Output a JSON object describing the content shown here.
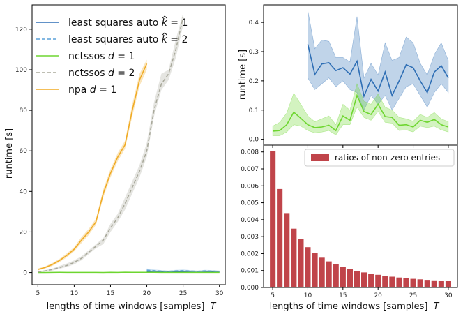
{
  "chart_data": [
    {
      "type": "line",
      "id": "left",
      "xlabel": "lengths of time windows [samples]",
      "xlabel_var": "T",
      "ylabel": "runtime [s]",
      "xlim": [
        4.2,
        30.8
      ],
      "ylim": [
        -6,
        132
      ],
      "xticks": [
        5,
        10,
        15,
        20,
        25,
        30
      ],
      "yticks": [
        0,
        20,
        40,
        60,
        80,
        100,
        120
      ],
      "legend": {
        "position": "top-left",
        "entries": [
          {
            "label": "least squares auto",
            "suffix": " = 1",
            "hat": "k"
          },
          {
            "label": "least squares auto",
            "suffix": " = 2",
            "hat": "k"
          },
          {
            "label": "nctssos",
            "suffix": " = 1",
            "var": "d"
          },
          {
            "label": "nctssos",
            "suffix": " = 2",
            "var": "d"
          },
          {
            "label": "npa",
            "suffix": " = 1",
            "var": "d"
          }
        ]
      },
      "series": [
        {
          "name": "least squares auto k=1",
          "color": "#2f6fb5",
          "dash": "solid",
          "x": [
            20,
            21,
            22,
            23,
            24,
            25,
            26,
            27,
            28,
            29,
            30
          ],
          "y": [
            0.33,
            0.22,
            0.28,
            0.24,
            0.27,
            0.3,
            0.22,
            0.17,
            0.23,
            0.25,
            0.21
          ],
          "lo": [
            0.2,
            0.12,
            0.15,
            0.13,
            0.15,
            0.17,
            0.12,
            0.1,
            0.13,
            0.14,
            0.12
          ],
          "hi": [
            1.5,
            0.6,
            0.5,
            0.45,
            0.5,
            0.6,
            0.4,
            0.35,
            0.4,
            0.5,
            0.35
          ]
        },
        {
          "name": "least squares auto k=2",
          "color": "#5aa0d8",
          "dash": "dashed",
          "x": [
            20,
            21,
            22,
            23,
            24,
            25,
            26,
            27,
            28,
            29,
            30
          ],
          "y": [
            1.2,
            0.9,
            0.7,
            0.6,
            0.8,
            0.9,
            0.7,
            0.6,
            0.8,
            0.7,
            0.6
          ],
          "lo": [
            0.7,
            0.5,
            0.4,
            0.3,
            0.4,
            0.5,
            0.4,
            0.3,
            0.4,
            0.4,
            0.3
          ],
          "hi": [
            2.0,
            1.5,
            1.2,
            1.0,
            1.3,
            1.5,
            1.2,
            1.0,
            1.3,
            1.2,
            1.0
          ]
        },
        {
          "name": "nctssos d=1",
          "color": "#6ed630",
          "dash": "solid",
          "x": [
            5,
            6,
            7,
            8,
            9,
            10,
            11,
            12,
            13,
            14,
            15,
            16,
            17,
            18,
            19,
            20,
            21,
            22,
            23,
            24,
            25,
            26,
            27,
            28,
            29,
            30
          ],
          "y": [
            0.03,
            0.03,
            0.05,
            0.09,
            0.07,
            0.05,
            0.04,
            0.04,
            0.05,
            0.03,
            0.08,
            0.07,
            0.15,
            0.1,
            0.09,
            0.12,
            0.08,
            0.07,
            0.05,
            0.05,
            0.04,
            0.06,
            0.05,
            0.06,
            0.05,
            0.04
          ],
          "lo": [
            0.01,
            0.01,
            0.02,
            0.05,
            0.04,
            0.03,
            0.02,
            0.02,
            0.03,
            0.01,
            0.05,
            0.05,
            0.1,
            0.07,
            0.06,
            0.09,
            0.06,
            0.05,
            0.03,
            0.03,
            0.02,
            0.04,
            0.03,
            0.04,
            0.03,
            0.02
          ],
          "hi": [
            0.05,
            0.06,
            0.09,
            0.16,
            0.12,
            0.08,
            0.06,
            0.07,
            0.08,
            0.05,
            0.12,
            0.1,
            0.19,
            0.13,
            0.12,
            0.15,
            0.11,
            0.1,
            0.08,
            0.07,
            0.06,
            0.08,
            0.07,
            0.09,
            0.07,
            0.06
          ]
        },
        {
          "name": "nctssos d=2",
          "color": "#a8a89a",
          "dash": "dashed",
          "x": [
            5,
            6,
            7,
            8,
            9,
            10,
            11,
            12,
            13,
            14,
            15,
            16,
            17,
            18,
            19,
            20,
            21,
            22,
            23,
            24,
            25
          ],
          "y": [
            0.3,
            0.8,
            1.5,
            2.5,
            3.5,
            5,
            7,
            10,
            13,
            16,
            22,
            27,
            34,
            42,
            50,
            60,
            80,
            93,
            98,
            110,
            126
          ],
          "lo": [
            0.1,
            0.5,
            1.0,
            1.8,
            2.8,
            4,
            6,
            9,
            12,
            14,
            20,
            25,
            31,
            39,
            47,
            57,
            77,
            90,
            95,
            106,
            122
          ],
          "hi": [
            0.5,
            1.2,
            2.0,
            3.3,
            4.5,
            6,
            8,
            11,
            14,
            17,
            24,
            29,
            37,
            45,
            53,
            64,
            84,
            98,
            100,
            115,
            128
          ]
        },
        {
          "name": "npa d=1",
          "color": "#f0aa22",
          "dash": "solid",
          "x": [
            5,
            6,
            7,
            8,
            9,
            10,
            11,
            12,
            13,
            14,
            15,
            16,
            17,
            18,
            19,
            20
          ],
          "y": [
            1.5,
            2.5,
            4,
            6,
            8.5,
            11.5,
            16,
            20,
            25,
            39,
            49,
            57,
            63,
            80,
            95,
            103
          ],
          "lo": [
            1.0,
            2.0,
            3.3,
            5.2,
            7.5,
            10.5,
            14.5,
            18.5,
            23.5,
            37,
            47,
            55,
            61,
            77,
            92,
            100
          ],
          "hi": [
            2.0,
            3.0,
            4.7,
            6.8,
            9.5,
            12.5,
            17.5,
            21.5,
            26.5,
            41,
            51,
            59,
            65,
            83,
            98,
            105
          ]
        }
      ]
    },
    {
      "type": "line",
      "id": "top-right",
      "ylabel": "runtime [s]",
      "xlim": [
        3.7,
        31.3
      ],
      "ylim": [
        -0.02,
        0.46
      ],
      "yticks": [
        "0.0",
        "0.1",
        "0.2",
        "0.3",
        "0.4"
      ],
      "ytick_values": [
        0,
        0.1,
        0.2,
        0.3,
        0.4
      ],
      "series": [
        {
          "name": "least squares auto k=1",
          "color": "#2f6fb5",
          "x": [
            10,
            11,
            12,
            13,
            14,
            15,
            16,
            17,
            18,
            19,
            20,
            21,
            22,
            23,
            24,
            25,
            26,
            27,
            28,
            29,
            30
          ],
          "y": [
            0.325,
            0.222,
            0.258,
            0.262,
            0.235,
            0.245,
            0.223,
            0.267,
            0.148,
            0.205,
            0.165,
            0.23,
            0.15,
            0.2,
            0.255,
            0.245,
            0.2,
            0.16,
            0.23,
            0.252,
            0.21
          ],
          "lo": [
            0.21,
            0.17,
            0.19,
            0.21,
            0.18,
            0.2,
            0.17,
            0.16,
            0.1,
            0.15,
            0.12,
            0.15,
            0.1,
            0.14,
            0.18,
            0.19,
            0.15,
            0.11,
            0.16,
            0.19,
            0.16
          ],
          "hi": [
            0.44,
            0.31,
            0.34,
            0.335,
            0.28,
            0.28,
            0.265,
            0.42,
            0.21,
            0.26,
            0.22,
            0.33,
            0.27,
            0.28,
            0.35,
            0.33,
            0.26,
            0.22,
            0.29,
            0.33,
            0.27
          ]
        },
        {
          "name": "nctssos d=1",
          "color": "#6ed630",
          "x": [
            5,
            6,
            7,
            8,
            9,
            10,
            11,
            12,
            13,
            14,
            15,
            16,
            17,
            18,
            19,
            20,
            21,
            22,
            23,
            24,
            25,
            26,
            27,
            28,
            29,
            30
          ],
          "y": [
            0.028,
            0.03,
            0.05,
            0.093,
            0.072,
            0.05,
            0.04,
            0.042,
            0.048,
            0.03,
            0.08,
            0.065,
            0.15,
            0.095,
            0.085,
            0.12,
            0.078,
            0.075,
            0.048,
            0.05,
            0.042,
            0.065,
            0.058,
            0.068,
            0.05,
            0.042
          ],
          "lo": [
            0.012,
            0.012,
            0.025,
            0.05,
            0.045,
            0.03,
            0.022,
            0.025,
            0.03,
            0.015,
            0.05,
            0.05,
            0.11,
            0.075,
            0.065,
            0.095,
            0.058,
            0.055,
            0.03,
            0.032,
            0.025,
            0.045,
            0.04,
            0.045,
            0.032,
            0.025
          ],
          "hi": [
            0.045,
            0.058,
            0.09,
            0.158,
            0.12,
            0.08,
            0.06,
            0.07,
            0.08,
            0.05,
            0.12,
            0.1,
            0.19,
            0.13,
            0.12,
            0.155,
            0.11,
            0.1,
            0.075,
            0.07,
            0.062,
            0.085,
            0.075,
            0.092,
            0.07,
            0.06
          ]
        }
      ]
    },
    {
      "type": "bar",
      "id": "bottom-right",
      "xlabel": "lengths of time windows [samples]",
      "xlabel_var": "T",
      "xlim": [
        3.7,
        31.3
      ],
      "ylim": [
        0,
        0.0084
      ],
      "xticks": [
        5,
        10,
        15,
        20,
        25,
        30
      ],
      "yticks": [
        "0.000",
        "0.001",
        "0.002",
        "0.003",
        "0.004",
        "0.005",
        "0.006",
        "0.007",
        "0.008"
      ],
      "ytick_values": [
        0,
        0.001,
        0.002,
        0.003,
        0.004,
        0.005,
        0.006,
        0.007,
        0.008
      ],
      "legend": {
        "position": "top-right",
        "label": "ratios of non-zero entries"
      },
      "color": "#c0444a",
      "categories": [
        5,
        6,
        7,
        8,
        9,
        10,
        11,
        12,
        13,
        14,
        15,
        16,
        17,
        18,
        19,
        20,
        21,
        22,
        23,
        24,
        25,
        26,
        27,
        28,
        29,
        30
      ],
      "values": [
        0.00806,
        0.00581,
        0.00439,
        0.00347,
        0.00284,
        0.00238,
        0.00204,
        0.00176,
        0.00154,
        0.00136,
        0.00121,
        0.00109,
        0.00098,
        0.00089,
        0.00082,
        0.00075,
        0.00069,
        0.00064,
        0.00059,
        0.00055,
        0.00051,
        0.00048,
        0.00045,
        0.00042,
        0.00039,
        0.00037
      ]
    }
  ]
}
